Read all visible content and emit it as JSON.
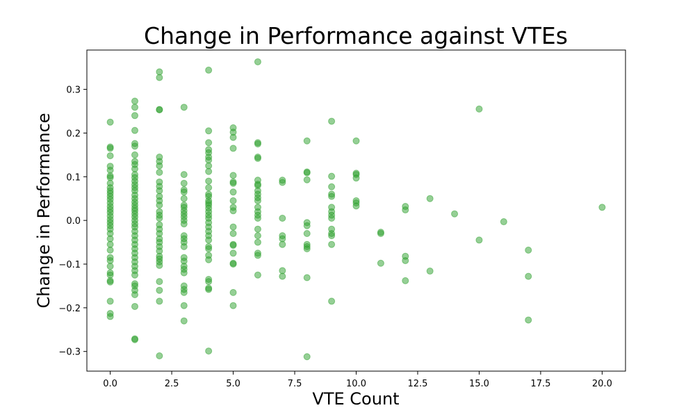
{
  "chart_data": {
    "type": "scatter",
    "title": "Change in Performance against VTEs",
    "xlabel": "VTE Count",
    "ylabel": "Change in Performance",
    "xlim": [
      -0.95,
      20.95
    ],
    "ylim": [
      -0.345,
      0.39
    ],
    "xticks": [
      0.0,
      2.5,
      5.0,
      7.5,
      10.0,
      12.5,
      15.0,
      17.5,
      20.0
    ],
    "xtick_labels": [
      "0.0",
      "2.5",
      "5.0",
      "7.5",
      "10.0",
      "12.5",
      "15.0",
      "17.5",
      "20.0"
    ],
    "yticks": [
      -0.3,
      -0.2,
      -0.1,
      0.0,
      0.1,
      0.2,
      0.3
    ],
    "ytick_labels": [
      "−0.3",
      "−0.2",
      "−0.1",
      "0.0",
      "0.1",
      "0.2",
      "0.3"
    ],
    "grid": false,
    "marker_color": "#2ca02c",
    "marker_alpha": 0.5,
    "points": [
      [
        0,
        0.225
      ],
      [
        0,
        0.168
      ],
      [
        0,
        0.165
      ],
      [
        0,
        0.148
      ],
      [
        0,
        0.124
      ],
      [
        0,
        0.115
      ],
      [
        0,
        0.102
      ],
      [
        0,
        0.098
      ],
      [
        0,
        0.085
      ],
      [
        0,
        0.075
      ],
      [
        0,
        0.068
      ],
      [
        0,
        0.062
      ],
      [
        0,
        0.055
      ],
      [
        0,
        0.048
      ],
      [
        0,
        0.04
      ],
      [
        0,
        0.032
      ],
      [
        0,
        0.025
      ],
      [
        0,
        0.018
      ],
      [
        0,
        0.01
      ],
      [
        0,
        0.002
      ],
      [
        0,
        -0.005
      ],
      [
        0,
        -0.012
      ],
      [
        0,
        -0.02
      ],
      [
        0,
        -0.03
      ],
      [
        0,
        -0.042
      ],
      [
        0,
        -0.055
      ],
      [
        0,
        -0.068
      ],
      [
        0,
        -0.085
      ],
      [
        0,
        -0.092
      ],
      [
        0,
        -0.105
      ],
      [
        0,
        -0.12
      ],
      [
        0,
        -0.125
      ],
      [
        0,
        -0.138
      ],
      [
        0,
        -0.141
      ],
      [
        0,
        -0.185
      ],
      [
        0,
        -0.213
      ],
      [
        0,
        -0.22
      ],
      [
        1,
        0.273
      ],
      [
        1,
        0.259
      ],
      [
        1,
        0.24
      ],
      [
        1,
        0.206
      ],
      [
        1,
        0.176
      ],
      [
        1,
        0.17
      ],
      [
        1,
        0.15
      ],
      [
        1,
        0.135
      ],
      [
        1,
        0.128
      ],
      [
        1,
        0.118
      ],
      [
        1,
        0.105
      ],
      [
        1,
        0.098
      ],
      [
        1,
        0.09
      ],
      [
        1,
        0.082
      ],
      [
        1,
        0.075
      ],
      [
        1,
        0.068
      ],
      [
        1,
        0.058
      ],
      [
        1,
        0.05
      ],
      [
        1,
        0.042
      ],
      [
        1,
        0.035
      ],
      [
        1,
        0.028
      ],
      [
        1,
        0.022
      ],
      [
        1,
        0.015
      ],
      [
        1,
        0.008
      ],
      [
        1,
        0.0
      ],
      [
        1,
        -0.008
      ],
      [
        1,
        -0.015
      ],
      [
        1,
        -0.025
      ],
      [
        1,
        -0.035
      ],
      [
        1,
        -0.045
      ],
      [
        1,
        -0.055
      ],
      [
        1,
        -0.065
      ],
      [
        1,
        -0.075
      ],
      [
        1,
        -0.085
      ],
      [
        1,
        -0.095
      ],
      [
        1,
        -0.105
      ],
      [
        1,
        -0.115
      ],
      [
        1,
        -0.125
      ],
      [
        1,
        -0.145
      ],
      [
        1,
        -0.15
      ],
      [
        1,
        -0.16
      ],
      [
        1,
        -0.17
      ],
      [
        1,
        -0.197
      ],
      [
        1,
        -0.271
      ],
      [
        1,
        -0.273
      ],
      [
        2,
        0.34
      ],
      [
        2,
        0.327
      ],
      [
        2,
        0.254
      ],
      [
        2,
        0.253
      ],
      [
        2,
        0.145
      ],
      [
        2,
        0.135
      ],
      [
        2,
        0.125
      ],
      [
        2,
        0.11
      ],
      [
        2,
        0.088
      ],
      [
        2,
        0.078
      ],
      [
        2,
        0.068
      ],
      [
        2,
        0.055
      ],
      [
        2,
        0.045
      ],
      [
        2,
        0.035
      ],
      [
        2,
        0.02
      ],
      [
        2,
        0.012
      ],
      [
        2,
        0.005
      ],
      [
        2,
        -0.01
      ],
      [
        2,
        -0.02
      ],
      [
        2,
        -0.03
      ],
      [
        2,
        -0.042
      ],
      [
        2,
        -0.05
      ],
      [
        2,
        -0.06
      ],
      [
        2,
        -0.07
      ],
      [
        2,
        -0.082
      ],
      [
        2,
        -0.088
      ],
      [
        2,
        -0.095
      ],
      [
        2,
        -0.103
      ],
      [
        2,
        -0.14
      ],
      [
        2,
        -0.16
      ],
      [
        2,
        -0.185
      ],
      [
        2,
        -0.31
      ],
      [
        3,
        0.259
      ],
      [
        3,
        0.105
      ],
      [
        3,
        0.085
      ],
      [
        3,
        0.07
      ],
      [
        3,
        0.065
      ],
      [
        3,
        0.05
      ],
      [
        3,
        0.035
      ],
      [
        3,
        0.03
      ],
      [
        3,
        0.022
      ],
      [
        3,
        0.015
      ],
      [
        3,
        0.008
      ],
      [
        3,
        0.0
      ],
      [
        3,
        -0.008
      ],
      [
        3,
        -0.035
      ],
      [
        3,
        -0.042
      ],
      [
        3,
        -0.05
      ],
      [
        3,
        -0.06
      ],
      [
        3,
        -0.085
      ],
      [
        3,
        -0.093
      ],
      [
        3,
        -0.105
      ],
      [
        3,
        -0.112
      ],
      [
        3,
        -0.12
      ],
      [
        3,
        -0.15
      ],
      [
        3,
        -0.158
      ],
      [
        3,
        -0.165
      ],
      [
        3,
        -0.195
      ],
      [
        3,
        -0.23
      ],
      [
        4,
        0.344
      ],
      [
        4,
        0.205
      ],
      [
        4,
        0.178
      ],
      [
        4,
        0.162
      ],
      [
        4,
        0.155
      ],
      [
        4,
        0.145
      ],
      [
        4,
        0.138
      ],
      [
        4,
        0.125
      ],
      [
        4,
        0.112
      ],
      [
        4,
        0.09
      ],
      [
        4,
        0.075
      ],
      [
        4,
        0.06
      ],
      [
        4,
        0.055
      ],
      [
        4,
        0.045
      ],
      [
        4,
        0.04
      ],
      [
        4,
        0.035
      ],
      [
        4,
        0.028
      ],
      [
        4,
        0.02
      ],
      [
        4,
        0.012
      ],
      [
        4,
        0.005
      ],
      [
        4,
        -0.005
      ],
      [
        4,
        -0.015
      ],
      [
        4,
        -0.025
      ],
      [
        4,
        -0.035
      ],
      [
        4,
        -0.045
      ],
      [
        4,
        -0.06
      ],
      [
        4,
        -0.065
      ],
      [
        4,
        -0.08
      ],
      [
        4,
        -0.09
      ],
      [
        4,
        -0.135
      ],
      [
        4,
        -0.14
      ],
      [
        4,
        -0.155
      ],
      [
        4,
        -0.158
      ],
      [
        4,
        -0.299
      ],
      [
        5,
        0.212
      ],
      [
        5,
        0.202
      ],
      [
        5,
        0.19
      ],
      [
        5,
        0.165
      ],
      [
        5,
        0.103
      ],
      [
        5,
        0.088
      ],
      [
        5,
        0.085
      ],
      [
        5,
        0.065
      ],
      [
        5,
        0.045
      ],
      [
        5,
        0.03
      ],
      [
        5,
        0.022
      ],
      [
        5,
        -0.015
      ],
      [
        5,
        -0.03
      ],
      [
        5,
        -0.055
      ],
      [
        5,
        -0.057
      ],
      [
        5,
        -0.075
      ],
      [
        5,
        -0.098
      ],
      [
        5,
        -0.1
      ],
      [
        5,
        -0.165
      ],
      [
        5,
        -0.195
      ],
      [
        6,
        0.363
      ],
      [
        6,
        0.178
      ],
      [
        6,
        0.175
      ],
      [
        6,
        0.145
      ],
      [
        6,
        0.142
      ],
      [
        6,
        0.092
      ],
      [
        6,
        0.083
      ],
      [
        6,
        0.08
      ],
      [
        6,
        0.068
      ],
      [
        6,
        0.06
      ],
      [
        6,
        0.052
      ],
      [
        6,
        0.045
      ],
      [
        6,
        0.03
      ],
      [
        6,
        0.02
      ],
      [
        6,
        0.012
      ],
      [
        6,
        0.005
      ],
      [
        6,
        -0.02
      ],
      [
        6,
        -0.035
      ],
      [
        6,
        -0.05
      ],
      [
        6,
        -0.075
      ],
      [
        6,
        -0.08
      ],
      [
        6,
        -0.125
      ],
      [
        7,
        0.092
      ],
      [
        7,
        0.087
      ],
      [
        7,
        0.005
      ],
      [
        7,
        -0.035
      ],
      [
        7,
        -0.042
      ],
      [
        7,
        -0.055
      ],
      [
        7,
        -0.115
      ],
      [
        7,
        -0.128
      ],
      [
        8,
        0.182
      ],
      [
        8,
        0.111
      ],
      [
        8,
        0.109
      ],
      [
        8,
        0.093
      ],
      [
        8,
        -0.005
      ],
      [
        8,
        -0.012
      ],
      [
        8,
        -0.03
      ],
      [
        8,
        -0.055
      ],
      [
        8,
        -0.06
      ],
      [
        8,
        -0.065
      ],
      [
        8,
        -0.131
      ],
      [
        8,
        -0.312
      ],
      [
        9,
        0.227
      ],
      [
        9,
        0.101
      ],
      [
        9,
        0.077
      ],
      [
        9,
        0.06
      ],
      [
        9,
        0.055
      ],
      [
        9,
        0.03
      ],
      [
        9,
        0.02
      ],
      [
        9,
        0.012
      ],
      [
        9,
        0.005
      ],
      [
        9,
        -0.02
      ],
      [
        9,
        -0.03
      ],
      [
        9,
        -0.035
      ],
      [
        9,
        -0.055
      ],
      [
        9,
        -0.185
      ],
      [
        10,
        0.182
      ],
      [
        10,
        0.108
      ],
      [
        10,
        0.105
      ],
      [
        10,
        0.097
      ],
      [
        10,
        0.045
      ],
      [
        10,
        0.04
      ],
      [
        10,
        0.033
      ],
      [
        11,
        -0.027
      ],
      [
        11,
        -0.03
      ],
      [
        11,
        -0.098
      ],
      [
        12,
        0.032
      ],
      [
        12,
        0.024
      ],
      [
        12,
        -0.082
      ],
      [
        12,
        -0.092
      ],
      [
        12,
        -0.138
      ],
      [
        13,
        0.05
      ],
      [
        13,
        -0.116
      ],
      [
        14,
        0.015
      ],
      [
        15,
        0.255
      ],
      [
        15,
        -0.045
      ],
      [
        16,
        -0.003
      ],
      [
        17,
        -0.068
      ],
      [
        17,
        -0.128
      ],
      [
        17,
        -0.228
      ],
      [
        20,
        0.03
      ]
    ]
  }
}
